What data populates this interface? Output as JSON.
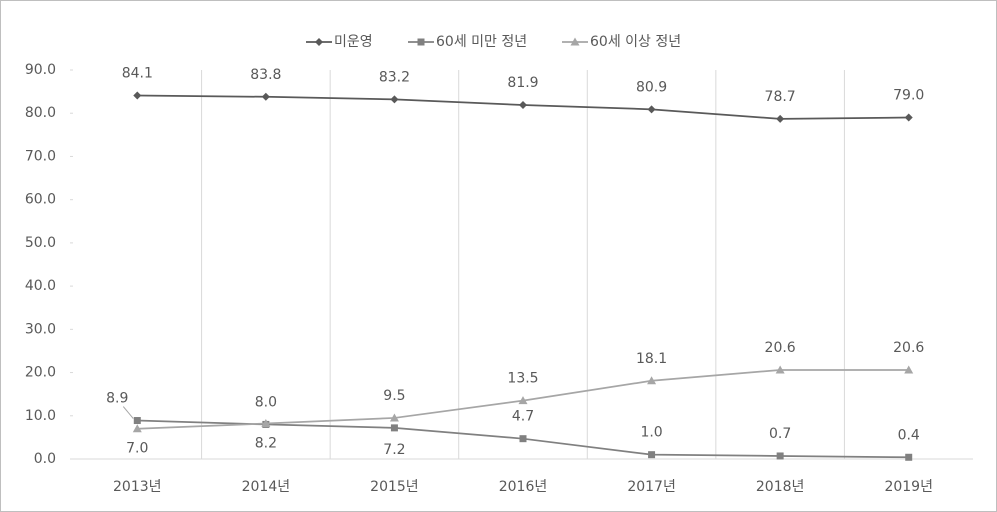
{
  "chart_data": {
    "type": "line",
    "categories": [
      "2013년",
      "2014년",
      "2015년",
      "2016년",
      "2017년",
      "2018년",
      "2019년"
    ],
    "series": [
      {
        "name": "미운영",
        "color": "#595959",
        "marker": "diamond",
        "values": [
          84.1,
          83.8,
          83.2,
          81.9,
          80.9,
          78.7,
          79.0
        ],
        "value_labels": [
          "84.1",
          "83.8",
          "83.2",
          "81.9",
          "80.9",
          "78.7",
          "79.0"
        ]
      },
      {
        "name": "60세 미만 정년",
        "color": "#808080",
        "marker": "square",
        "values": [
          8.9,
          8.0,
          7.2,
          4.7,
          1.0,
          0.7,
          0.4
        ],
        "value_labels": [
          "8.9",
          "8.0",
          "7.2",
          "4.7",
          "1.0",
          "0.7",
          "0.4"
        ]
      },
      {
        "name": "60세 이상 정년",
        "color": "#a6a6a6",
        "marker": "triangle",
        "values": [
          7.0,
          8.2,
          9.5,
          13.5,
          18.1,
          20.6,
          20.6
        ],
        "value_labels": [
          "7.0",
          "8.2",
          "9.5",
          "13.5",
          "18.1",
          "20.6",
          "20.6"
        ]
      }
    ],
    "ylim": [
      0,
      90
    ],
    "yticks": [
      {
        "value": 0,
        "label": "0.0"
      },
      {
        "value": 10,
        "label": "10.0"
      },
      {
        "value": 20,
        "label": "20.0"
      },
      {
        "value": 30,
        "label": "30.0"
      },
      {
        "value": 40,
        "label": "40.0"
      },
      {
        "value": 50,
        "label": "50.0"
      },
      {
        "value": 60,
        "label": "60.0"
      },
      {
        "value": 70,
        "label": "70.0"
      },
      {
        "value": 80,
        "label": "80.0"
      },
      {
        "value": 90,
        "label": "90.0"
      }
    ],
    "legend": "top"
  }
}
